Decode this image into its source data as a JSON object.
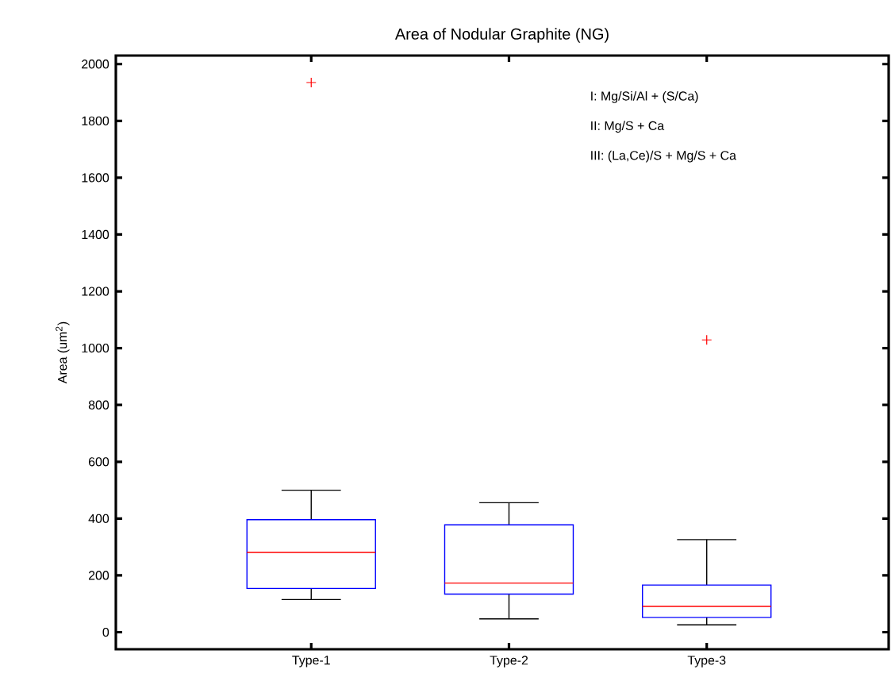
{
  "chart_data": {
    "type": "box",
    "title": "Area of Nodular Graphite (NG)",
    "ylabel": "Area (um$^{2}$)",
    "categories": [
      "Type-1",
      "Type-2",
      "Type-3"
    ],
    "boxes": [
      {
        "low": 115,
        "q1": 154,
        "median": 281,
        "q3": 396,
        "high": 500,
        "outliers": [
          1935
        ]
      },
      {
        "low": 47,
        "q1": 134,
        "median": 173,
        "q3": 378,
        "high": 456
      },
      {
        "low": 26,
        "q1": 52,
        "median": 91,
        "q3": 166,
        "high": 326,
        "outliers": [
          1029
        ]
      }
    ],
    "color": "#0000ff",
    "ylim": [
      -60,
      2030
    ],
    "yticks": [
      0,
      200,
      400,
      600,
      800,
      1000,
      1200,
      1400,
      1600,
      1800,
      2000
    ],
    "grid": false,
    "annotations": [
      "I: Mg/Si/Al + (S/Ca)",
      "II: Mg/S + Ca",
      "III: (La,Ce)/S + Mg/S + Ca"
    ]
  }
}
